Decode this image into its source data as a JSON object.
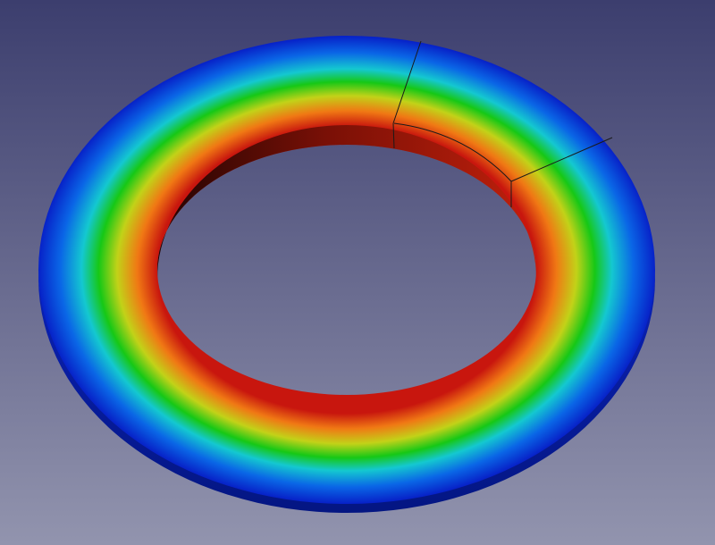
{
  "viewport": {
    "background_top": "#3c3e6e",
    "background_bottom": "#9294ae"
  },
  "result": {
    "colormap": [
      "#0722c8",
      "#0a66e6",
      "#14c8d0",
      "#16c816",
      "#c2d218",
      "#f07814",
      "#c8160e"
    ],
    "side_colors": [
      "#0a22b8",
      "#041682"
    ],
    "inner_wall_colors": [
      "#220402",
      "#7a1006",
      "#c0200c"
    ],
    "edge_color": "#1a1a1a"
  }
}
